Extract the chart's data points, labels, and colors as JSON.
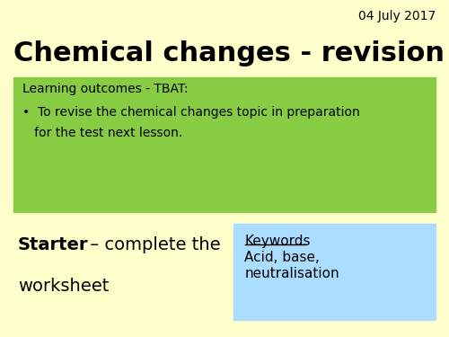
{
  "background_color": "#ffffcc",
  "date_text": "04 July 2017",
  "title_text": "Chemical changes - revision",
  "green_box_color": "#88cc44",
  "green_box_label": "Learning outcomes - TBAT:",
  "green_box_bullet_line1": "•  To revise the chemical changes topic in preparation",
  "green_box_bullet_line2": "   for the test next lesson.",
  "starter_bold": "Starter",
  "starter_rest": " – complete the",
  "starter_line2": "worksheet",
  "keywords_box_color": "#aaddff",
  "keywords_title": "Keywords",
  "keywords_body": "Acid, base,\nneutralisation",
  "date_fontsize": 10,
  "title_fontsize": 22,
  "label_fontsize": 10,
  "starter_fontsize": 14,
  "keywords_fontsize": 11
}
